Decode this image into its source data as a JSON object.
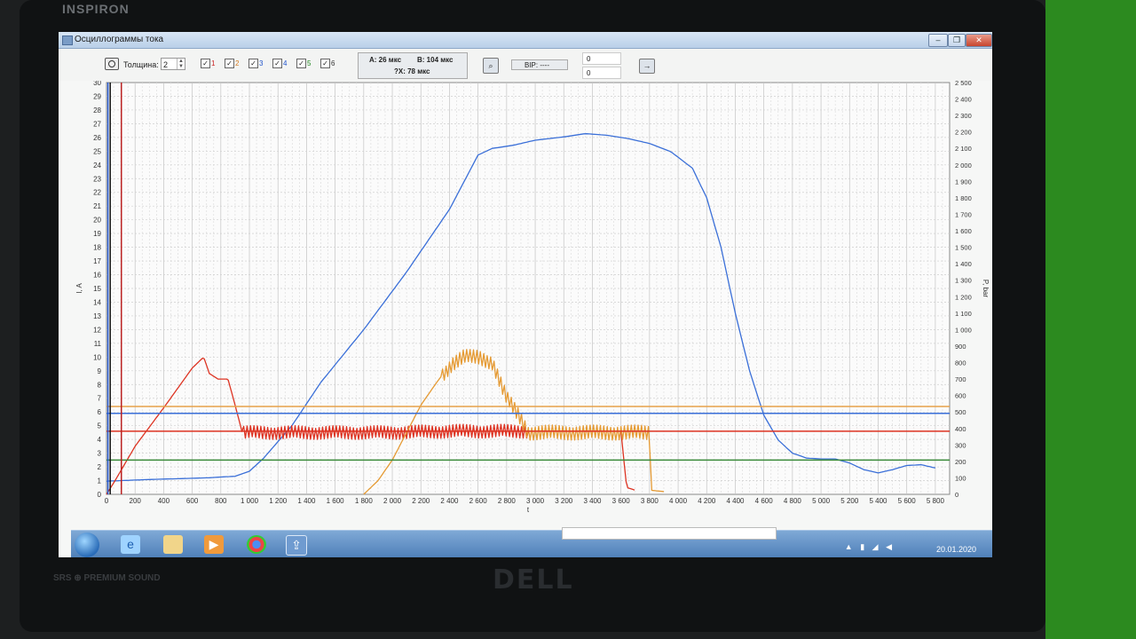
{
  "laptop": {
    "brand": "INSPIRON",
    "logo": "DELL",
    "sound": "SRS ⊕ PREMIUM SOUND"
  },
  "window": {
    "title": "Осциллограммы тока",
    "controls": [
      "minimize-icon",
      "maximize-icon",
      "close-icon"
    ]
  },
  "toolbar": {
    "camera_icon": "camera-icon",
    "thickness_label": "Толщина:",
    "thickness_value": "2",
    "channels": [
      {
        "label": "1",
        "checked": true,
        "color": "#cc2222"
      },
      {
        "label": "2",
        "checked": true,
        "color": "#d47a20"
      },
      {
        "label": "3",
        "checked": true,
        "color": "#2255cc"
      },
      {
        "label": "4",
        "checked": true,
        "color": "#2255cc"
      },
      {
        "label": "5",
        "checked": true,
        "color": "#228822"
      },
      {
        "label": "6",
        "checked": true,
        "color": "#333333"
      }
    ],
    "marker_a": "A: 26 мкс",
    "marker_b": "B: 104 мкс",
    "marker_dx": "?X: 78 мкс",
    "bip_label": "BIP: ----",
    "field1": "0",
    "field2": "0"
  },
  "chart_data": {
    "type": "line",
    "xlabel": "t",
    "ylabel": "I, A",
    "ylabel_right": "P, bar",
    "xlim": [
      0,
      5900
    ],
    "ylim": [
      0,
      30
    ],
    "ylim_right": [
      0,
      2500
    ],
    "xticks": [
      0,
      200,
      400,
      600,
      800,
      1000,
      1200,
      1400,
      1600,
      1800,
      2000,
      2200,
      2400,
      2600,
      2800,
      3000,
      3200,
      3400,
      3600,
      3800,
      4000,
      4200,
      4400,
      4600,
      4800,
      5000,
      5200,
      5400,
      5600,
      5800
    ],
    "xtick_labels": [
      "0",
      "200",
      "400",
      "600",
      "800",
      "1 000",
      "1 200",
      "1 400",
      "1 600",
      "1 800",
      "2 000",
      "2 200",
      "2 400",
      "2 600",
      "2 800",
      "3 000",
      "3 200",
      "3 400",
      "3 600",
      "3 800",
      "4 000",
      "4 200",
      "4 400",
      "4 600",
      "4 800",
      "5 000",
      "5 200",
      "5 400",
      "5 600",
      "5 800"
    ],
    "yticks": [
      0,
      1,
      2,
      3,
      4,
      5,
      6,
      7,
      8,
      9,
      10,
      11,
      12,
      13,
      14,
      15,
      16,
      17,
      18,
      19,
      20,
      21,
      22,
      23,
      24,
      25,
      26,
      27,
      28,
      29,
      30
    ],
    "yticks_right": [
      0,
      100,
      200,
      300,
      400,
      500,
      600,
      700,
      800,
      900,
      1000,
      1100,
      1200,
      1300,
      1400,
      1500,
      1600,
      1700,
      1800,
      1900,
      2000,
      2100,
      2200,
      2300,
      2400,
      2500
    ],
    "yticks_right_labels": [
      "0",
      "100",
      "200",
      "300",
      "400",
      "500",
      "600",
      "700",
      "800",
      "900",
      "1 000",
      "1 100",
      "1 200",
      "1 300",
      "1 400",
      "1 500",
      "1 600",
      "1 700",
      "1 800",
      "1 900",
      "2 000",
      "2 100",
      "2 200",
      "2 300",
      "2 400",
      "2 500"
    ],
    "grid": true,
    "series": [
      {
        "axis": "right",
        "color": "#3a6fd8",
        "noise": 0,
        "points": [
          [
            0,
            80
          ],
          [
            300,
            90
          ],
          [
            700,
            100
          ],
          [
            900,
            110
          ],
          [
            1000,
            140
          ],
          [
            1100,
            220
          ],
          [
            1300,
            420
          ],
          [
            1500,
            680
          ],
          [
            1800,
            1000
          ],
          [
            2100,
            1350
          ],
          [
            2400,
            1730
          ],
          [
            2600,
            2060
          ],
          [
            2700,
            2100
          ],
          [
            2850,
            2120
          ],
          [
            3000,
            2150
          ],
          [
            3200,
            2170
          ],
          [
            3350,
            2190
          ],
          [
            3500,
            2180
          ],
          [
            3650,
            2160
          ],
          [
            3800,
            2130
          ],
          [
            3950,
            2080
          ],
          [
            4100,
            1980
          ],
          [
            4200,
            1800
          ],
          [
            4300,
            1500
          ],
          [
            4400,
            1100
          ],
          [
            4500,
            750
          ],
          [
            4600,
            480
          ],
          [
            4700,
            330
          ],
          [
            4800,
            250
          ],
          [
            4900,
            220
          ],
          [
            5000,
            215
          ],
          [
            5100,
            215
          ],
          [
            5200,
            190
          ],
          [
            5300,
            150
          ],
          [
            5400,
            130
          ],
          [
            5500,
            150
          ],
          [
            5600,
            175
          ],
          [
            5700,
            180
          ],
          [
            5800,
            160
          ]
        ]
      },
      {
        "axis": "left",
        "color": "#dd3322",
        "noise": 0.5,
        "noise_from": 950,
        "noise_to": 2950,
        "points": [
          [
            0,
            0
          ],
          [
            60,
            1
          ],
          [
            200,
            3.5
          ],
          [
            400,
            6.3
          ],
          [
            600,
            9.2
          ],
          [
            680,
            10
          ],
          [
            720,
            8.8
          ],
          [
            780,
            8.4
          ],
          [
            850,
            8.4
          ],
          [
            900,
            6.5
          ],
          [
            950,
            4.5
          ],
          [
            1200,
            4.5
          ],
          [
            1600,
            4.5
          ],
          [
            2000,
            4.5
          ],
          [
            2400,
            4.6
          ],
          [
            2800,
            4.6
          ],
          [
            2950,
            4.6
          ],
          [
            3600,
            4.6
          ],
          [
            3640,
            0.5
          ],
          [
            3700,
            0.3
          ]
        ]
      },
      {
        "axis": "left",
        "color": "#e59a33",
        "noise": 0.55,
        "noise_from": 2350,
        "noise_to": 3800,
        "points": [
          [
            1800,
            0
          ],
          [
            1900,
            1
          ],
          [
            2000,
            2.5
          ],
          [
            2100,
            4.5
          ],
          [
            2200,
            6.5
          ],
          [
            2300,
            8
          ],
          [
            2350,
            8.7
          ],
          [
            2420,
            9.5
          ],
          [
            2500,
            10
          ],
          [
            2600,
            10
          ],
          [
            2700,
            9.6
          ],
          [
            2800,
            7
          ],
          [
            2900,
            5.5
          ],
          [
            2950,
            4.5
          ],
          [
            3200,
            4.5
          ],
          [
            3500,
            4.5
          ],
          [
            3800,
            4.5
          ],
          [
            3810,
            0.3
          ],
          [
            3900,
            0.2
          ]
        ]
      },
      {
        "axis": "left",
        "color": "#e8a24a",
        "hline": 6.4
      },
      {
        "axis": "left",
        "color": "#3a6fd8",
        "hline": 5.9
      },
      {
        "axis": "left",
        "color": "#dd3322",
        "hline": 4.6
      },
      {
        "axis": "left",
        "color": "#3a8a3a",
        "hline": 2.5
      },
      {
        "axis": "left",
        "color": "#2255cc",
        "vline": 10
      },
      {
        "axis": "left",
        "color": "#111111",
        "vline": 26
      },
      {
        "axis": "left",
        "color": "#bb2222",
        "vline": 104
      }
    ]
  },
  "taskbar": {
    "items": [
      "windows-start-icon",
      "internet-explorer-icon",
      "file-explorer-icon",
      "media-player-icon",
      "chrome-icon",
      "app-window-icon"
    ],
    "clock_date": "20.01.2020"
  }
}
